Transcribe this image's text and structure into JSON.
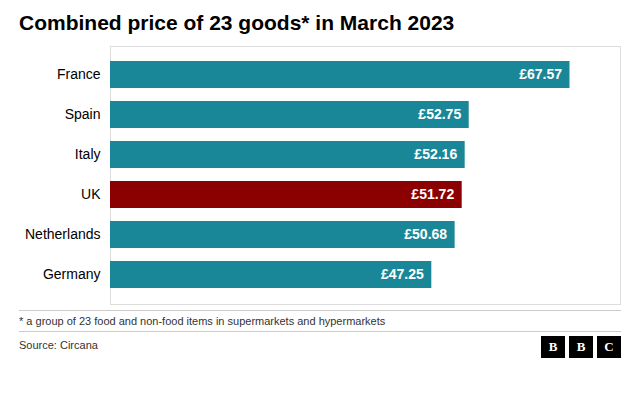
{
  "chart_data": {
    "type": "bar",
    "orientation": "horizontal",
    "title": "Combined price of 23 goods* in March 2023",
    "categories": [
      "France",
      "Spain",
      "Italy",
      "UK",
      "Netherlands",
      "Germany"
    ],
    "values": [
      67.57,
      52.75,
      52.16,
      51.72,
      50.68,
      47.25
    ],
    "value_labels": [
      "£67.57",
      "£52.75",
      "£52.16",
      "£51.72",
      "£50.68",
      "£47.25"
    ],
    "data_labels": true,
    "colors": [
      "#1a8799",
      "#1a8799",
      "#1a8799",
      "#8b0000",
      "#1a8799",
      "#1a8799"
    ],
    "xlim": [
      0,
      75
    ],
    "tick_labels": "y",
    "grid": false,
    "annotations": [
      "* a group of 23 food and non-food items in supermarkets and hypermarkets",
      "Source: Circana",
      "BBC"
    ]
  }
}
